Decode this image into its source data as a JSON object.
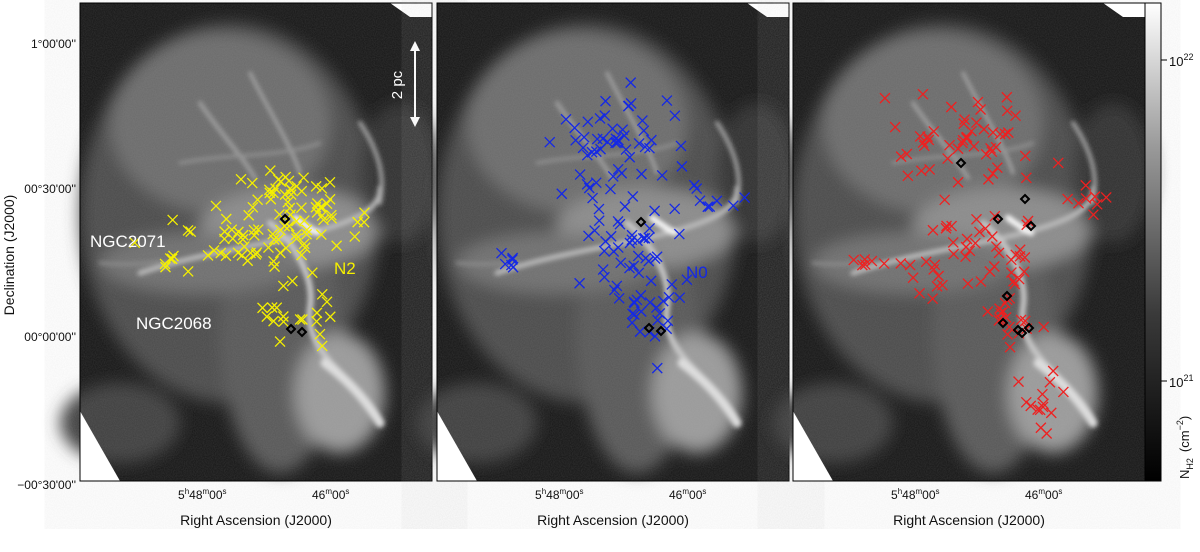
{
  "colors": {
    "panel1_markers": "#f5f000",
    "panel2_markers": "#1428e6",
    "panel3_markers": "#ee2020",
    "special_markers": "#000000"
  },
  "axes": {
    "xlabel": "Right Ascension (J2000)",
    "ylabel": "Declination (J2000)",
    "x_tick_labels": [
      {
        "main": "5",
        "sup1": "h",
        "mid": "48",
        "sup2": "m",
        "end": "00",
        "sup3": "s"
      },
      {
        "main": "",
        "sup1": "",
        "mid": "46",
        "sup2": "m",
        "end": "00",
        "sup3": "s"
      }
    ],
    "y_tick_labels": [
      "1°00'00''",
      "00°30'00''",
      "00°00'00''",
      "−00°30'00''"
    ]
  },
  "panels": [
    {
      "region_label": "N2",
      "marker_count_hint": "yellow crosses"
    },
    {
      "region_label": "N0",
      "marker_count_hint": "blue crosses"
    },
    {
      "region_label": "",
      "marker_count_hint": "red crosses"
    }
  ],
  "annotations": {
    "scale_bar": "2 pc",
    "source1": "NGC2071",
    "source2": "NGC2068"
  },
  "colorbar": {
    "label_main": "N",
    "label_sub": "H2",
    "label_unit": "(cm",
    "label_unit_sup": "−2",
    "label_unit_close": ")",
    "tick_high": {
      "base": "10",
      "exp": "22"
    },
    "tick_low": {
      "base": "10",
      "exp": "21"
    },
    "scale": "log"
  }
}
